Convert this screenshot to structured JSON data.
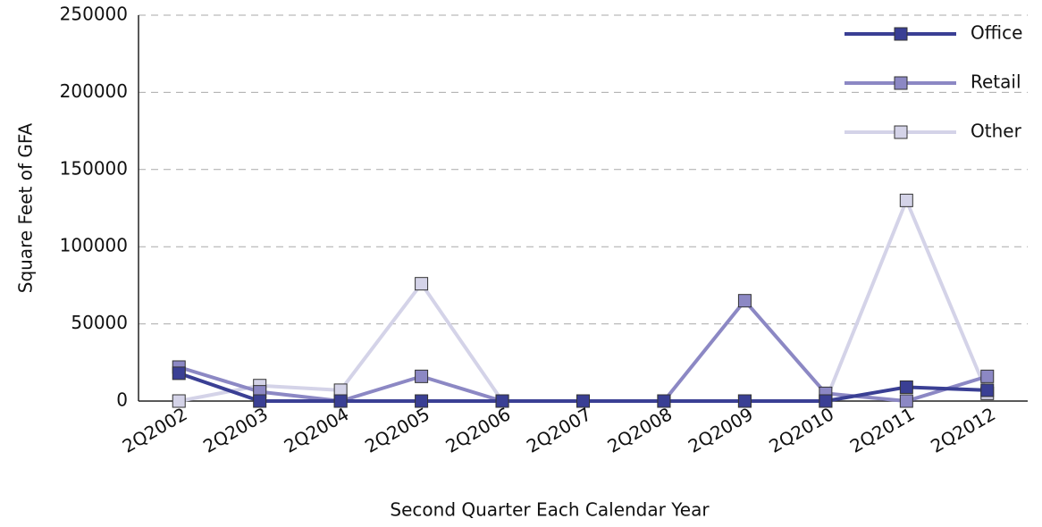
{
  "chart_data": {
    "type": "line",
    "y_label": "Square Feet of GFA",
    "x_label": "Second Quarter Each Calendar Year",
    "categories": [
      "2Q2002",
      "2Q2003",
      "2Q2004",
      "2Q2005",
      "2Q2006",
      "2Q2007",
      "2Q2008",
      "2Q2009",
      "2Q2010",
      "2Q2011",
      "2Q2012"
    ],
    "series": [
      {
        "name": "Office",
        "color": "#3a3f94",
        "values": [
          18000,
          0,
          0,
          0,
          0,
          0,
          0,
          0,
          0,
          9000,
          7000
        ]
      },
      {
        "name": "Retail",
        "color": "#8c88c4",
        "values": [
          22000,
          6000,
          0,
          16000,
          0,
          0,
          0,
          65000,
          5000,
          0,
          16000
        ]
      },
      {
        "name": "Other",
        "color": "#d4d3e8",
        "values": [
          0,
          10000,
          7000,
          76000,
          0,
          0,
          0,
          0,
          0,
          130000,
          5000
        ]
      }
    ],
    "ylim": [
      0,
      250000
    ],
    "yticks": [
      0,
      50000,
      100000,
      150000,
      200000,
      250000
    ],
    "grid": true,
    "legend": "top-right"
  }
}
